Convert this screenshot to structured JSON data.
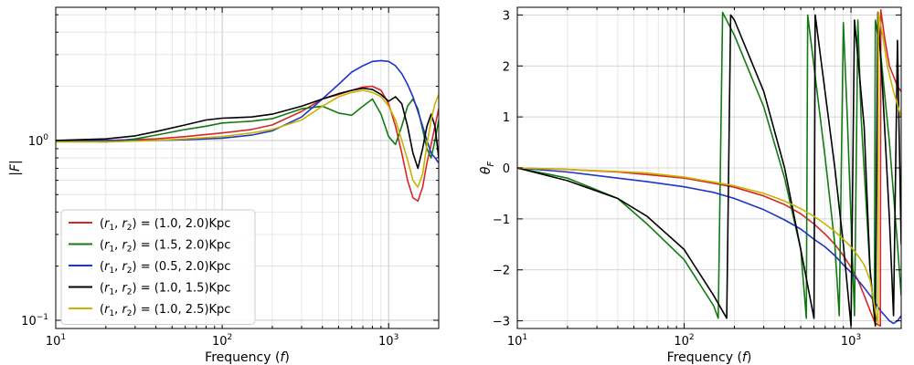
{
  "chart_data": [
    {
      "type": "line",
      "panel": "left",
      "xlabel": "Frequency (f)",
      "ylabel": "|F|",
      "xscale": "log",
      "yscale": "log",
      "xlim": [
        10,
        2000
      ],
      "ylim": [
        0.09,
        5.5
      ],
      "xticks": [
        10,
        100,
        1000
      ],
      "xtick_labels": [
        "10^1",
        "10^2",
        "10^3"
      ],
      "yticks": [
        0.1,
        1
      ],
      "ytick_labels": [
        "10^-1",
        "10^0"
      ],
      "grid": true,
      "legend_position": "lower-left",
      "series": [
        {
          "name": "(r1, r2) = (1.0, 2.0)Kpc",
          "color": "#d62728",
          "x": [
            10,
            20,
            40,
            60,
            100,
            150,
            200,
            300,
            400,
            500,
            600,
            700,
            800,
            900,
            1000,
            1100,
            1200,
            1300,
            1400,
            1500,
            1600,
            1700,
            1800,
            1900,
            2000
          ],
          "y": [
            1.0,
            1.0,
            1.02,
            1.05,
            1.1,
            1.15,
            1.22,
            1.45,
            1.7,
            1.8,
            1.9,
            1.98,
            2.0,
            1.9,
            1.6,
            1.2,
            0.85,
            0.6,
            0.48,
            0.46,
            0.55,
            0.75,
            0.95,
            1.2,
            1.5
          ]
        },
        {
          "name": "(r1, r2) = (1.5, 2.0)Kpc",
          "color": "#137a13",
          "x": [
            10,
            15,
            20,
            30,
            40,
            60,
            80,
            100,
            150,
            200,
            300,
            400,
            500,
            600,
            700,
            800,
            900,
            1000,
            1100,
            1200,
            1300,
            1400,
            1500,
            1600,
            1700,
            1800,
            1900,
            2000
          ],
          "y": [
            1.0,
            0.99,
            0.98,
            1.02,
            1.07,
            1.15,
            1.2,
            1.25,
            1.28,
            1.32,
            1.5,
            1.55,
            1.42,
            1.38,
            1.55,
            1.7,
            1.4,
            1.05,
            0.95,
            1.2,
            1.55,
            1.7,
            1.5,
            1.15,
            0.9,
            0.8,
            1.0,
            1.3
          ]
        },
        {
          "name": "(r1, r2) = (0.5, 2.0)Kpc",
          "color": "#1f35c8",
          "x": [
            10,
            20,
            40,
            60,
            100,
            150,
            200,
            300,
            400,
            500,
            600,
            700,
            800,
            900,
            1000,
            1100,
            1200,
            1300,
            1400,
            1500,
            1600,
            1700,
            1800,
            1900,
            2000
          ],
          "y": [
            1.0,
            1.0,
            1.0,
            1.01,
            1.03,
            1.07,
            1.13,
            1.35,
            1.7,
            2.05,
            2.4,
            2.6,
            2.75,
            2.78,
            2.75,
            2.6,
            2.35,
            2.05,
            1.75,
            1.45,
            1.2,
            1.0,
            0.85,
            0.8,
            0.75
          ]
        },
        {
          "name": "(r1, r2) = (1.0, 1.5)Kpc",
          "color": "#000000",
          "x": [
            10,
            20,
            30,
            40,
            60,
            80,
            100,
            150,
            200,
            300,
            400,
            500,
            600,
            700,
            800,
            900,
            1000,
            1100,
            1200,
            1300,
            1400,
            1500,
            1600,
            1700,
            1800,
            1900,
            2000
          ],
          "y": [
            1.0,
            1.02,
            1.06,
            1.12,
            1.22,
            1.3,
            1.33,
            1.35,
            1.4,
            1.55,
            1.7,
            1.82,
            1.9,
            1.95,
            1.92,
            1.8,
            1.65,
            1.75,
            1.6,
            1.2,
            0.85,
            0.7,
            0.9,
            1.2,
            1.4,
            1.2,
            0.8
          ]
        },
        {
          "name": "(r1, r2) = (1.0, 2.5)Kpc",
          "color": "#c8b400",
          "x": [
            10,
            20,
            40,
            60,
            100,
            150,
            200,
            300,
            400,
            500,
            600,
            700,
            800,
            900,
            1000,
            1100,
            1200,
            1300,
            1400,
            1500,
            1600,
            1700,
            1800,
            1900,
            2000
          ],
          "y": [
            0.98,
            0.98,
            1.0,
            1.02,
            1.05,
            1.1,
            1.15,
            1.3,
            1.55,
            1.75,
            1.85,
            1.9,
            1.85,
            1.75,
            1.55,
            1.3,
            1.0,
            0.78,
            0.6,
            0.55,
            0.65,
            0.95,
            1.3,
            1.6,
            1.8
          ]
        }
      ]
    },
    {
      "type": "line",
      "panel": "right",
      "xlabel": "Frequency (f)",
      "ylabel": "θF",
      "xscale": "log",
      "yscale": "linear",
      "xlim": [
        10,
        2000
      ],
      "ylim": [
        -3.15,
        3.15
      ],
      "xticks": [
        10,
        100,
        1000
      ],
      "xtick_labels": [
        "10^1",
        "10^2",
        "10^3"
      ],
      "yticks": [
        -3,
        -2,
        -1,
        0,
        1,
        2,
        3
      ],
      "ytick_labels": [
        "−3",
        "−2",
        "−1",
        "0",
        "1",
        "2",
        "3"
      ],
      "grid": true,
      "series": [
        {
          "name": "(r1, r2) = (1.0, 2.0)Kpc",
          "color": "#d62728",
          "x": [
            10,
            20,
            40,
            60,
            100,
            150,
            200,
            300,
            400,
            500,
            600,
            700,
            800,
            900,
            1000,
            1100,
            1200,
            1300,
            1400,
            1500,
            1510,
            1600,
            1700,
            1800,
            1900,
            2000
          ],
          "y": [
            0.0,
            -0.03,
            -0.08,
            -0.13,
            -0.2,
            -0.3,
            -0.38,
            -0.55,
            -0.72,
            -0.9,
            -1.1,
            -1.3,
            -1.5,
            -1.72,
            -1.95,
            -2.2,
            -2.5,
            -2.8,
            -3.05,
            -3.1,
            3.1,
            2.5,
            2.0,
            1.8,
            1.6,
            1.5
          ]
        },
        {
          "name": "(r1, r2) = (1.5, 2.0)Kpc",
          "color": "#137a13",
          "x": [
            10,
            20,
            40,
            60,
            100,
            150,
            160,
            170,
            200,
            300,
            400,
            500,
            540,
            550,
            700,
            800,
            850,
            900,
            950,
            1050,
            1100,
            1150,
            1300,
            1380,
            1400,
            1500,
            1700,
            1900,
            2000
          ],
          "y": [
            0.0,
            -0.2,
            -0.6,
            -1.1,
            -1.8,
            -2.7,
            -2.95,
            3.05,
            2.6,
            1.2,
            -0.2,
            -1.6,
            -2.95,
            3.0,
            0.2,
            -1.5,
            -2.9,
            2.85,
            1.0,
            -2.9,
            2.9,
            1.0,
            -2.0,
            -2.9,
            2.9,
            2.3,
            0.5,
            -1.5,
            -2.5
          ]
        },
        {
          "name": "(r1, r2) = (0.5, 2.0)Kpc",
          "color": "#1f35c8",
          "x": [
            10,
            20,
            40,
            60,
            100,
            150,
            200,
            300,
            400,
            500,
            600,
            700,
            800,
            900,
            1000,
            1100,
            1200,
            1300,
            1400,
            1500,
            1600,
            1700,
            1800,
            1900,
            2000
          ],
          "y": [
            0.0,
            -0.08,
            -0.2,
            -0.27,
            -0.37,
            -0.48,
            -0.6,
            -0.82,
            -1.02,
            -1.2,
            -1.4,
            -1.55,
            -1.72,
            -1.9,
            -2.05,
            -2.2,
            -2.35,
            -2.5,
            -2.65,
            -2.8,
            -2.9,
            -3.0,
            -3.05,
            -3.0,
            -2.9
          ]
        },
        {
          "name": "(r1, r2) = (1.0, 1.5)Kpc",
          "color": "#000000",
          "x": [
            10,
            20,
            40,
            60,
            100,
            150,
            180,
            190,
            200,
            300,
            400,
            500,
            600,
            610,
            800,
            900,
            1000,
            1050,
            1200,
            1300,
            1400,
            1450,
            1550,
            1700,
            1800,
            1900,
            2000
          ],
          "y": [
            0.0,
            -0.25,
            -0.6,
            -0.95,
            -1.6,
            -2.5,
            -2.95,
            3.0,
            2.9,
            1.5,
            0.0,
            -1.6,
            -2.95,
            3.0,
            0.0,
            -1.5,
            -3.1,
            2.9,
            0.8,
            -2.0,
            -3.1,
            3.05,
            1.5,
            -1.0,
            -2.9,
            2.5,
            -1.5
          ]
        },
        {
          "name": "(r1, r2) = (1.0, 2.5)Kpc",
          "color": "#c8b400",
          "x": [
            10,
            20,
            40,
            60,
            100,
            150,
            200,
            300,
            400,
            500,
            600,
            700,
            800,
            900,
            1000,
            1100,
            1200,
            1300,
            1400,
            1450,
            1460,
            1550,
            1650,
            1800,
            2000
          ],
          "y": [
            0.0,
            -0.03,
            -0.07,
            -0.1,
            -0.18,
            -0.28,
            -0.35,
            -0.5,
            -0.65,
            -0.8,
            -0.95,
            -1.1,
            -1.25,
            -1.4,
            -1.55,
            -1.72,
            -1.9,
            -2.2,
            -2.8,
            -3.05,
            3.05,
            2.6,
            2.0,
            1.5,
            1.0
          ]
        }
      ]
    }
  ]
}
